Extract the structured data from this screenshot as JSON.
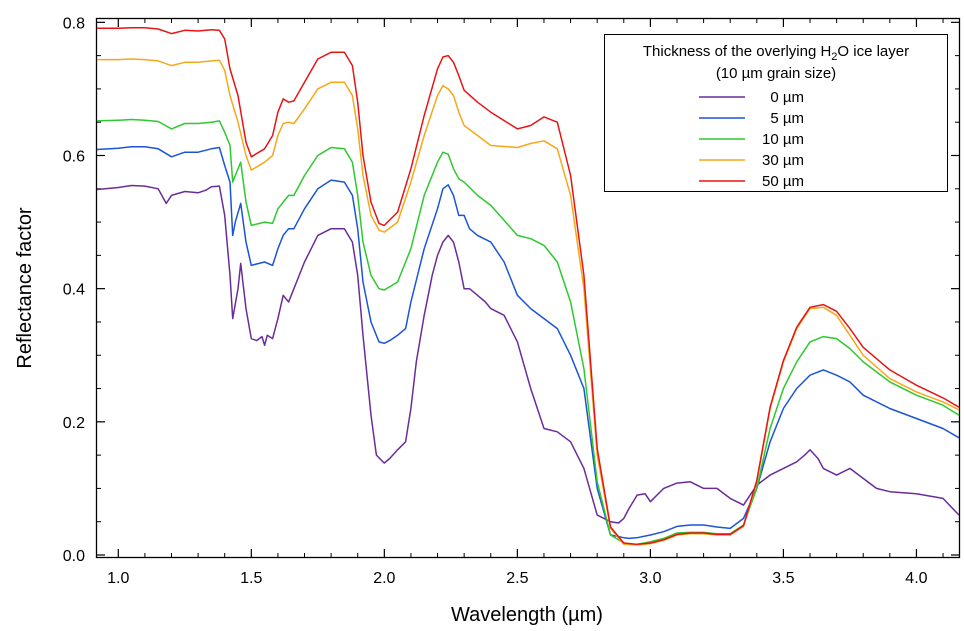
{
  "chart_data": {
    "type": "line",
    "xlabel": "Wavelength (µm)",
    "ylabel": "Reflectance factor",
    "xlim": [
      0.92,
      4.16
    ],
    "ylim": [
      -0.003,
      0.805
    ],
    "xticks": [
      1.0,
      1.5,
      2.0,
      2.5,
      3.0,
      3.5,
      4.0
    ],
    "xtick_labels": [
      "1.0",
      "1.5",
      "2.0",
      "2.5",
      "3.0",
      "3.5",
      "4.0"
    ],
    "yticks": [
      0.0,
      0.2,
      0.4,
      0.6,
      0.8
    ],
    "ytick_labels": [
      "0.0",
      "0.2",
      "0.4",
      "0.6",
      "0.8"
    ],
    "grid": false,
    "legend": {
      "title_line1_prefix": "Thickness of the overlying H",
      "title_line1_sub": "2",
      "title_line1_suffix": "O ice layer",
      "title_line2": "(10 µm grain size)",
      "placement": "top-right"
    },
    "series": [
      {
        "name": "0 µm",
        "color": "#6a2c9a",
        "x": [
          0.92,
          1.0,
          1.05,
          1.1,
          1.15,
          1.18,
          1.2,
          1.25,
          1.3,
          1.33,
          1.35,
          1.38,
          1.4,
          1.42,
          1.43,
          1.45,
          1.46,
          1.48,
          1.5,
          1.52,
          1.54,
          1.55,
          1.56,
          1.58,
          1.6,
          1.62,
          1.64,
          1.66,
          1.7,
          1.75,
          1.8,
          1.85,
          1.88,
          1.9,
          1.92,
          1.95,
          1.97,
          2.0,
          2.02,
          2.05,
          2.08,
          2.1,
          2.12,
          2.15,
          2.18,
          2.2,
          2.22,
          2.24,
          2.26,
          2.28,
          2.3,
          2.32,
          2.35,
          2.38,
          2.4,
          2.45,
          2.5,
          2.55,
          2.6,
          2.65,
          2.7,
          2.75,
          2.8,
          2.85,
          2.88,
          2.9,
          2.92,
          2.95,
          2.98,
          3.0,
          3.05,
          3.1,
          3.15,
          3.2,
          3.25,
          3.3,
          3.35,
          3.4,
          3.45,
          3.5,
          3.55,
          3.58,
          3.6,
          3.63,
          3.65,
          3.7,
          3.75,
          3.8,
          3.85,
          3.9,
          4.0,
          4.1,
          4.16
        ],
        "y": [
          0.549,
          0.552,
          0.555,
          0.554,
          0.55,
          0.528,
          0.54,
          0.546,
          0.544,
          0.548,
          0.553,
          0.554,
          0.51,
          0.42,
          0.355,
          0.4,
          0.438,
          0.37,
          0.325,
          0.322,
          0.328,
          0.315,
          0.33,
          0.325,
          0.355,
          0.39,
          0.38,
          0.4,
          0.44,
          0.48,
          0.49,
          0.49,
          0.47,
          0.42,
          0.33,
          0.21,
          0.15,
          0.138,
          0.145,
          0.158,
          0.17,
          0.22,
          0.29,
          0.36,
          0.42,
          0.45,
          0.47,
          0.48,
          0.47,
          0.44,
          0.4,
          0.4,
          0.39,
          0.38,
          0.37,
          0.36,
          0.32,
          0.25,
          0.19,
          0.185,
          0.17,
          0.13,
          0.06,
          0.05,
          0.048,
          0.055,
          0.07,
          0.09,
          0.092,
          0.08,
          0.1,
          0.108,
          0.11,
          0.1,
          0.1,
          0.085,
          0.075,
          0.105,
          0.12,
          0.13,
          0.14,
          0.15,
          0.158,
          0.145,
          0.13,
          0.12,
          0.13,
          0.115,
          0.1,
          0.095,
          0.092,
          0.085,
          0.06
        ]
      },
      {
        "name": "5 µm",
        "color": "#1a55d6",
        "x": [
          0.92,
          1.0,
          1.05,
          1.1,
          1.15,
          1.2,
          1.25,
          1.3,
          1.35,
          1.38,
          1.4,
          1.42,
          1.43,
          1.44,
          1.46,
          1.48,
          1.5,
          1.52,
          1.55,
          1.58,
          1.6,
          1.62,
          1.64,
          1.66,
          1.7,
          1.75,
          1.8,
          1.85,
          1.88,
          1.9,
          1.92,
          1.95,
          1.98,
          2.0,
          2.02,
          2.05,
          2.08,
          2.1,
          2.15,
          2.2,
          2.22,
          2.24,
          2.26,
          2.28,
          2.3,
          2.32,
          2.35,
          2.4,
          2.45,
          2.5,
          2.55,
          2.6,
          2.65,
          2.7,
          2.75,
          2.8,
          2.85,
          2.9,
          2.92,
          2.95,
          3.0,
          3.05,
          3.1,
          3.15,
          3.2,
          3.25,
          3.3,
          3.35,
          3.4,
          3.45,
          3.5,
          3.55,
          3.6,
          3.65,
          3.7,
          3.75,
          3.8,
          3.9,
          4.0,
          4.1,
          4.16
        ],
        "y": [
          0.609,
          0.611,
          0.613,
          0.613,
          0.61,
          0.598,
          0.605,
          0.605,
          0.61,
          0.612,
          0.585,
          0.56,
          0.48,
          0.5,
          0.528,
          0.47,
          0.435,
          0.437,
          0.44,
          0.435,
          0.46,
          0.48,
          0.49,
          0.49,
          0.52,
          0.55,
          0.563,
          0.56,
          0.54,
          0.49,
          0.41,
          0.35,
          0.32,
          0.318,
          0.322,
          0.33,
          0.34,
          0.38,
          0.46,
          0.52,
          0.55,
          0.556,
          0.54,
          0.51,
          0.51,
          0.49,
          0.48,
          0.47,
          0.44,
          0.39,
          0.37,
          0.355,
          0.34,
          0.3,
          0.25,
          0.1,
          0.03,
          0.026,
          0.025,
          0.026,
          0.03,
          0.035,
          0.043,
          0.045,
          0.045,
          0.042,
          0.04,
          0.055,
          0.1,
          0.17,
          0.22,
          0.25,
          0.27,
          0.278,
          0.27,
          0.26,
          0.24,
          0.22,
          0.205,
          0.19,
          0.176
        ]
      },
      {
        "name": "10 µm",
        "color": "#2ec92e",
        "x": [
          0.92,
          1.0,
          1.05,
          1.1,
          1.15,
          1.2,
          1.25,
          1.3,
          1.35,
          1.38,
          1.4,
          1.42,
          1.43,
          1.44,
          1.46,
          1.48,
          1.5,
          1.55,
          1.58,
          1.6,
          1.62,
          1.64,
          1.66,
          1.7,
          1.75,
          1.8,
          1.85,
          1.88,
          1.9,
          1.92,
          1.95,
          1.98,
          2.0,
          2.05,
          2.1,
          2.15,
          2.2,
          2.22,
          2.24,
          2.26,
          2.28,
          2.3,
          2.35,
          2.4,
          2.5,
          2.55,
          2.6,
          2.65,
          2.7,
          2.75,
          2.8,
          2.85,
          2.9,
          2.92,
          2.95,
          3.0,
          3.05,
          3.1,
          3.15,
          3.2,
          3.25,
          3.3,
          3.35,
          3.4,
          3.45,
          3.5,
          3.55,
          3.6,
          3.65,
          3.7,
          3.75,
          3.8,
          3.9,
          4.0,
          4.1,
          4.16
        ],
        "y": [
          0.652,
          0.653,
          0.654,
          0.653,
          0.651,
          0.64,
          0.648,
          0.648,
          0.65,
          0.652,
          0.635,
          0.615,
          0.56,
          0.57,
          0.59,
          0.53,
          0.495,
          0.5,
          0.498,
          0.52,
          0.53,
          0.54,
          0.54,
          0.57,
          0.6,
          0.612,
          0.61,
          0.59,
          0.54,
          0.47,
          0.42,
          0.4,
          0.398,
          0.41,
          0.46,
          0.54,
          0.59,
          0.605,
          0.602,
          0.58,
          0.565,
          0.56,
          0.54,
          0.525,
          0.48,
          0.475,
          0.465,
          0.44,
          0.38,
          0.28,
          0.11,
          0.03,
          0.018,
          0.016,
          0.016,
          0.02,
          0.025,
          0.033,
          0.034,
          0.034,
          0.032,
          0.032,
          0.045,
          0.1,
          0.19,
          0.25,
          0.29,
          0.32,
          0.328,
          0.325,
          0.31,
          0.29,
          0.26,
          0.24,
          0.225,
          0.21
        ]
      },
      {
        "name": "30 µm",
        "color": "#f5a81a",
        "x": [
          0.92,
          1.0,
          1.05,
          1.1,
          1.15,
          1.2,
          1.25,
          1.3,
          1.35,
          1.38,
          1.4,
          1.42,
          1.45,
          1.48,
          1.5,
          1.55,
          1.58,
          1.6,
          1.62,
          1.64,
          1.66,
          1.7,
          1.75,
          1.8,
          1.85,
          1.88,
          1.9,
          1.92,
          1.95,
          1.98,
          2.0,
          2.05,
          2.1,
          2.15,
          2.2,
          2.22,
          2.24,
          2.26,
          2.28,
          2.3,
          2.35,
          2.4,
          2.5,
          2.55,
          2.6,
          2.65,
          2.7,
          2.75,
          2.8,
          2.85,
          2.9,
          2.95,
          3.0,
          3.05,
          3.1,
          3.15,
          3.2,
          3.25,
          3.3,
          3.35,
          3.4,
          3.45,
          3.5,
          3.55,
          3.6,
          3.65,
          3.7,
          3.75,
          3.8,
          3.9,
          4.0,
          4.1,
          4.16
        ],
        "y": [
          0.744,
          0.744,
          0.745,
          0.744,
          0.742,
          0.735,
          0.74,
          0.74,
          0.742,
          0.743,
          0.728,
          0.69,
          0.65,
          0.6,
          0.578,
          0.59,
          0.6,
          0.63,
          0.648,
          0.65,
          0.648,
          0.67,
          0.7,
          0.71,
          0.71,
          0.69,
          0.64,
          0.57,
          0.51,
          0.488,
          0.485,
          0.5,
          0.56,
          0.63,
          0.69,
          0.705,
          0.7,
          0.69,
          0.665,
          0.645,
          0.63,
          0.615,
          0.612,
          0.618,
          0.622,
          0.61,
          0.54,
          0.4,
          0.15,
          0.04,
          0.016,
          0.015,
          0.017,
          0.022,
          0.03,
          0.032,
          0.032,
          0.03,
          0.03,
          0.043,
          0.11,
          0.22,
          0.29,
          0.34,
          0.37,
          0.372,
          0.36,
          0.33,
          0.3,
          0.265,
          0.245,
          0.23,
          0.218
        ]
      },
      {
        "name": "50 µm",
        "color": "#e81414",
        "x": [
          0.92,
          1.0,
          1.05,
          1.1,
          1.15,
          1.2,
          1.25,
          1.3,
          1.35,
          1.38,
          1.4,
          1.42,
          1.45,
          1.48,
          1.5,
          1.55,
          1.58,
          1.6,
          1.62,
          1.64,
          1.66,
          1.7,
          1.75,
          1.8,
          1.85,
          1.88,
          1.9,
          1.92,
          1.95,
          1.98,
          2.0,
          2.05,
          2.1,
          2.15,
          2.2,
          2.22,
          2.24,
          2.26,
          2.28,
          2.3,
          2.35,
          2.4,
          2.5,
          2.55,
          2.6,
          2.65,
          2.7,
          2.75,
          2.8,
          2.85,
          2.9,
          2.95,
          3.0,
          3.05,
          3.1,
          3.15,
          3.2,
          3.25,
          3.3,
          3.35,
          3.4,
          3.45,
          3.5,
          3.55,
          3.6,
          3.65,
          3.7,
          3.75,
          3.8,
          3.9,
          4.0,
          4.1,
          4.16
        ],
        "y": [
          0.791,
          0.791,
          0.792,
          0.792,
          0.79,
          0.783,
          0.788,
          0.787,
          0.789,
          0.788,
          0.775,
          0.73,
          0.69,
          0.62,
          0.598,
          0.61,
          0.63,
          0.665,
          0.685,
          0.68,
          0.682,
          0.71,
          0.745,
          0.755,
          0.755,
          0.735,
          0.68,
          0.6,
          0.53,
          0.498,
          0.495,
          0.515,
          0.58,
          0.66,
          0.73,
          0.748,
          0.75,
          0.74,
          0.72,
          0.698,
          0.68,
          0.665,
          0.64,
          0.645,
          0.658,
          0.65,
          0.57,
          0.42,
          0.16,
          0.042,
          0.018,
          0.016,
          0.018,
          0.023,
          0.031,
          0.033,
          0.033,
          0.031,
          0.031,
          0.044,
          0.112,
          0.222,
          0.292,
          0.342,
          0.372,
          0.376,
          0.366,
          0.34,
          0.312,
          0.278,
          0.255,
          0.236,
          0.222
        ]
      }
    ]
  }
}
